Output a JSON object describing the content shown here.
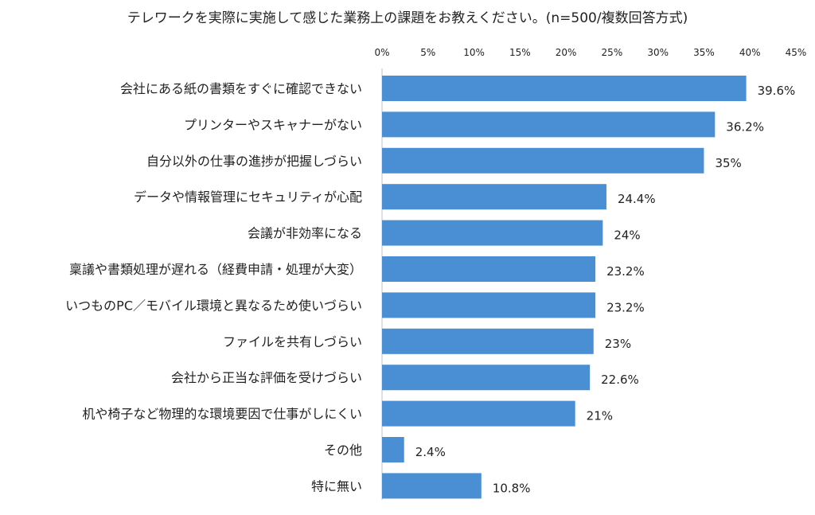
{
  "chart_data": {
    "type": "bar",
    "orientation": "horizontal",
    "title": "テレワークを実際に実施して感じた業務上の課題をお教えください。(n=500/複数回答方式)",
    "categories": [
      "会社にある紙の書類をすぐに確認できない",
      "プリンターやスキャナーがない",
      "自分以外の仕事の進捗が把握しづらい",
      "データや情報管理にセキュリティが心配",
      "会議が非効率になる",
      "稟議や書類処理が遅れる（経費申請・処理が大変）",
      "いつものPC／モバイル環境と異なるため使いづらい",
      "ファイルを共有しづらい",
      "会社から正当な評価を受けづらい",
      "机や椅子など物理的な環境要因で仕事がしにくい",
      "その他",
      "特に無い"
    ],
    "values": [
      39.6,
      36.2,
      35,
      24.4,
      24,
      23.2,
      23.2,
      23,
      22.6,
      21,
      2.4,
      10.8
    ],
    "value_labels": [
      "39.6%",
      "36.2%",
      "35%",
      "24.4%",
      "24%",
      "23.2%",
      "23.2%",
      "23%",
      "22.6%",
      "21%",
      "2.4%",
      "10.8%"
    ],
    "x_ticks": [
      0,
      5,
      10,
      15,
      20,
      25,
      30,
      35,
      40,
      45
    ],
    "x_tick_labels": [
      "0%",
      "5%",
      "10%",
      "15%",
      "20%",
      "25%",
      "30%",
      "35%",
      "40%",
      "45%"
    ],
    "xlim": [
      0,
      45
    ],
    "xaxis_position": "top",
    "grid": false,
    "legend": "none",
    "bar_color": "#4a8fd3"
  }
}
